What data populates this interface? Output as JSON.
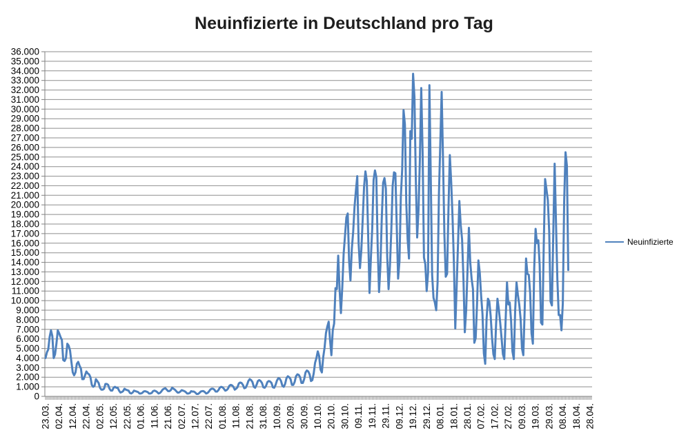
{
  "title": "Neuinfizierte in Deutschland pro Tag",
  "legend": {
    "label": "Neuinfizierte",
    "color": "#4F81BD"
  },
  "colors": {
    "series": "#4F81BD",
    "gridline": "#8e8e8e",
    "axis": "#7f7f7f",
    "tick": "#8e8e8e",
    "label_text": "#000000",
    "title_text": "#1e1e1e"
  },
  "chart_data": {
    "type": "line",
    "title": "Neuinfizierte in Deutschland pro Tag",
    "xlabel": "",
    "ylabel": "",
    "ylim": [
      0,
      36000
    ],
    "y_tick_step": 1000,
    "grid": "horizontal",
    "legend_position": "right",
    "y_tick_labels": [
      "0",
      "1.000",
      "2.000",
      "3.000",
      "4.000",
      "5.000",
      "6.000",
      "7.000",
      "8.000",
      "9.000",
      "10.000",
      "11.000",
      "12.000",
      "13.000",
      "14.000",
      "15.000",
      "16.000",
      "17.000",
      "18.000",
      "19.000",
      "20.000",
      "21.000",
      "22.000",
      "23.000",
      "24.000",
      "25.000",
      "26.000",
      "27.000",
      "28.000",
      "29.000",
      "30.000",
      "31.000",
      "32.000",
      "33.000",
      "34.000",
      "35.000",
      "36.000"
    ],
    "x_tick_labels": [
      "23.03.",
      "02.04.",
      "12.04.",
      "22.04.",
      "02.05.",
      "12.05.",
      "22.05.",
      "01.06.",
      "11.06.",
      "21.06.",
      "02.07.",
      "12.07.",
      "22.07.",
      "01.08.",
      "11.08.",
      "21.08.",
      "31.08.",
      "10.09.",
      "20.09.",
      "30.09.",
      "10.10.",
      "20.10.",
      "30.10.",
      "09.11.",
      "19.11.",
      "29.11.",
      "09.12.",
      "19.12.",
      "29.12.",
      "08.01.",
      "18.01.",
      "28.01.",
      "07.02.",
      "17.02.",
      "27.02.",
      "09.03.",
      "19.03.",
      "29.03.",
      "08.04.",
      "18.04.",
      "28.04."
    ],
    "x_label_every_n_points": 10,
    "x_total_slots": 402,
    "series": [
      {
        "name": "Neuinfizierte",
        "color": "#4F81BD",
        "first_point_label": "23.03.",
        "values": [
          4000,
          4600,
          4900,
          6200,
          6900,
          6300,
          4000,
          4400,
          5500,
          6900,
          6600,
          6200,
          5900,
          3800,
          3700,
          4000,
          5500,
          5300,
          4800,
          3600,
          2500,
          2200,
          2500,
          3400,
          3600,
          3200,
          2900,
          1800,
          1800,
          2200,
          2600,
          2400,
          2300,
          2000,
          1200,
          1000,
          1100,
          1800,
          1600,
          1400,
          900,
          700,
          700,
          800,
          1300,
          1300,
          1200,
          800,
          600,
          600,
          900,
          1000,
          900,
          900,
          600,
          400,
          450,
          550,
          800,
          700,
          650,
          600,
          350,
          300,
          400,
          600,
          550,
          500,
          450,
          300,
          300,
          350,
          500,
          550,
          500,
          450,
          300,
          300,
          350,
          550,
          600,
          550,
          450,
          300,
          350,
          500,
          700,
          800,
          850,
          700,
          550,
          550,
          650,
          900,
          800,
          700,
          550,
          400,
          400,
          500,
          650,
          600,
          550,
          450,
          300,
          300,
          350,
          550,
          500,
          500,
          400,
          250,
          250,
          350,
          500,
          550,
          550,
          450,
          300,
          350,
          500,
          700,
          800,
          800,
          700,
          500,
          500,
          650,
          900,
          1000,
          950,
          800,
          600,
          650,
          800,
          1100,
          1200,
          1150,
          1000,
          700,
          800,
          950,
          1350,
          1450,
          1400,
          1200,
          850,
          900,
          1200,
          1600,
          1800,
          1700,
          1500,
          1000,
          900,
          1200,
          1600,
          1700,
          1600,
          1400,
          950,
          900,
          1100,
          1500,
          1600,
          1550,
          1400,
          950,
          900,
          1200,
          1650,
          1900,
          1850,
          1600,
          1100,
          1000,
          1300,
          1900,
          2100,
          2000,
          1800,
          1200,
          1200,
          1500,
          2100,
          2300,
          2250,
          2000,
          1400,
          1400,
          1800,
          2500,
          2700,
          2600,
          2300,
          1600,
          1700,
          2400,
          3500,
          4000,
          4700,
          4200,
          2800,
          2500,
          4100,
          5100,
          6600,
          7300,
          7800,
          5900,
          4300,
          6900,
          7600,
          11300,
          11200,
          14700,
          11200,
          8700,
          11400,
          14900,
          16800,
          18700,
          19100,
          14200,
          12100,
          15400,
          17200,
          19800,
          21500,
          23000,
          16000,
          13400,
          15300,
          18500,
          21900,
          23500,
          22500,
          16900,
          10800,
          14400,
          17600,
          22600,
          23600,
          22900,
          15700,
          10900,
          13600,
          18600,
          22300,
          22800,
          21700,
          14600,
          11200,
          13600,
          17300,
          22000,
          23400,
          23300,
          17800,
          12300,
          14100,
          20800,
          23700,
          29900,
          28400,
          20200,
          16400,
          14400,
          27700,
          26900,
          33700,
          31300,
          22800,
          16600,
          19500,
          24700,
          32200,
          25500,
          14500,
          13800,
          11000,
          12900,
          32500,
          22900,
          12700,
          10300,
          9800,
          9000,
          11900,
          21200,
          26400,
          31800,
          24700,
          16900,
          12500,
          12800,
          19600,
          25200,
          22400,
          18700,
          13900,
          7100,
          11400,
          15900,
          20400,
          17900,
          16400,
          12300,
          6700,
          9000,
          13200,
          17600,
          14000,
          12300,
          11200,
          5600,
          6100,
          9700,
          14200,
          12900,
          10500,
          8600,
          4500,
          3400,
          8100,
          10200,
          9900,
          8400,
          6100,
          4400,
          3900,
          7600,
          10200,
          9100,
          7700,
          6100,
          4400,
          3900,
          8000,
          11900,
          9600,
          9800,
          7900,
          4700,
          3900,
          9000,
          11900,
          10600,
          9600,
          8100,
          5000,
          4300,
          9100,
          14400,
          12800,
          12700,
          10800,
          6600,
          5500,
          13400,
          17500,
          16000,
          16300,
          13700,
          7700,
          7500,
          15800,
          22700,
          21600,
          20500,
          17200,
          9900,
          9500,
          17100,
          24300,
          18100,
          12200,
          8500,
          8500,
          6900,
          9700,
          20400,
          25500,
          24100,
          13200
        ]
      }
    ]
  }
}
